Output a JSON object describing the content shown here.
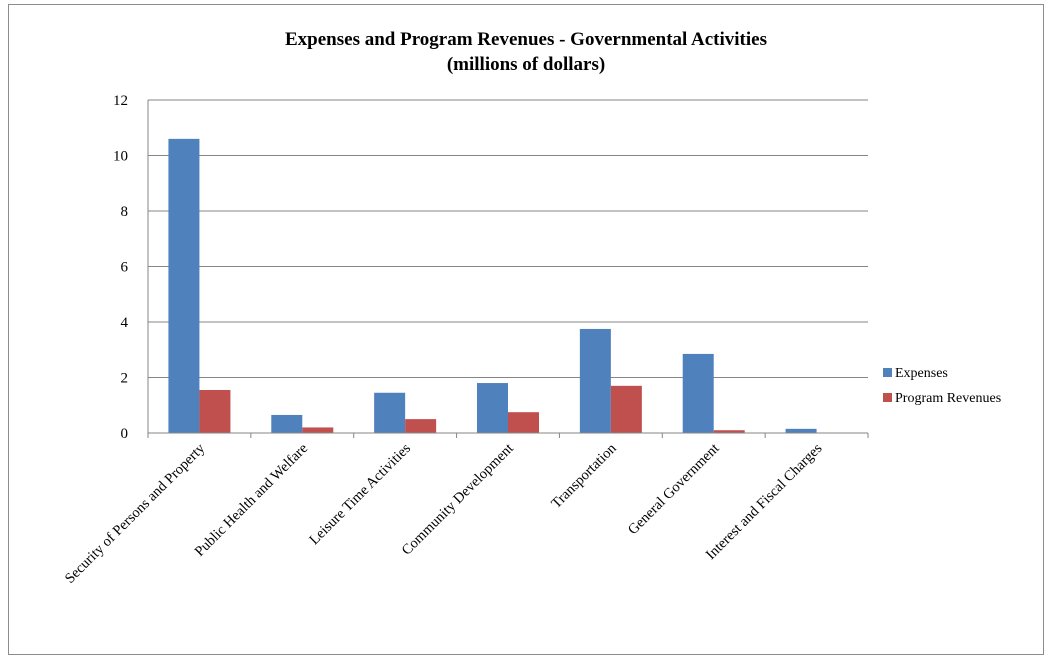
{
  "chart_data": {
    "type": "bar",
    "title": "Expenses and Program Revenues - Governmental Activities",
    "subtitle": "(millions  of dollars)",
    "xlabel": "",
    "ylabel": "",
    "ylim": [
      0,
      12
    ],
    "yticks": [
      "0",
      "2",
      "4",
      "6",
      "8",
      "10",
      "12"
    ],
    "grid": true,
    "legend_position": "right",
    "categories": [
      "Security of Persons and Property",
      "Public Health and Welfare",
      "Leisure Time Activities",
      "Community Development",
      "Transportation",
      "General Government",
      "Interest and Fiscal Charges"
    ],
    "series": [
      {
        "name": "Expenses",
        "color": "#4f81bd",
        "values": [
          10.6,
          0.65,
          1.45,
          1.8,
          3.75,
          2.85,
          0.15
        ]
      },
      {
        "name": "Program Revenues",
        "color": "#c0504d",
        "values": [
          1.55,
          0.2,
          0.5,
          0.75,
          1.7,
          0.1,
          0.0
        ]
      }
    ]
  }
}
